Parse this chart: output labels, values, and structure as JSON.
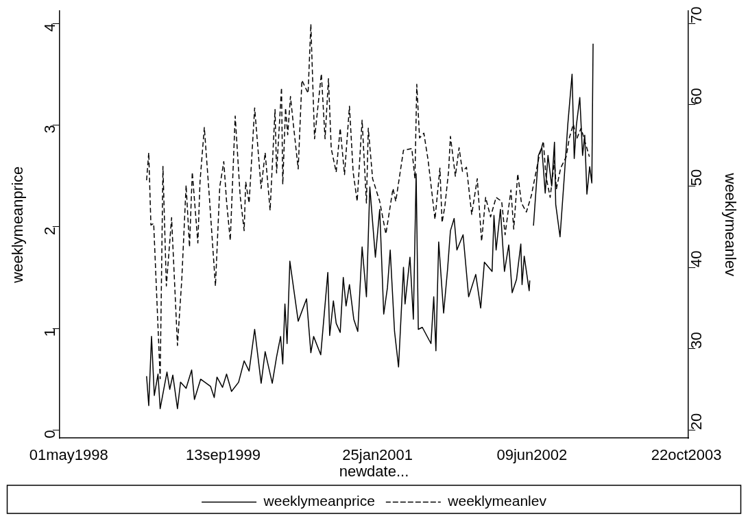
{
  "chart_data": {
    "type": "line",
    "xlabel": "newdate...",
    "ylabel": "weeklymeanprice",
    "y2label": "weeklymeanlev",
    "xlim": [
      "1998-04-01",
      "2003-10-29"
    ],
    "xticks": [
      {
        "value": "1998-05-01",
        "label": "01may1998"
      },
      {
        "value": "1999-09-13",
        "label": "13sep1999"
      },
      {
        "value": "2001-01-25",
        "label": "25jan2001"
      },
      {
        "value": "2002-06-09",
        "label": "09jun2002"
      },
      {
        "value": "2003-10-22",
        "label": "22oct2003"
      }
    ],
    "ylim": [
      -0.08,
      4.12
    ],
    "yticks": [
      0,
      1,
      2,
      3,
      4
    ],
    "y2lim": [
      19,
      71.5
    ],
    "y2ticks": [
      20,
      30,
      40,
      50,
      60,
      70
    ],
    "grid": false,
    "legend": "bottom",
    "marker": "none",
    "series": [
      {
        "name": "weeklymeanprice",
        "color": "#000000",
        "line_style": "solid",
        "x": [
          "1999-01-08",
          "1999-01-15",
          "1999-01-24",
          "1999-02-02",
          "1999-02-14",
          "1999-02-21",
          "1999-03-15",
          "1999-03-24",
          "1999-04-03",
          "1999-04-18",
          "1999-04-28",
          "1999-05-16",
          "1999-06-03",
          "1999-06-12",
          "1999-07-02",
          "1999-08-03",
          "1999-08-15",
          "1999-08-24",
          "1999-09-11",
          "1999-09-24",
          "1999-10-10",
          "1999-11-02",
          "1999-11-20",
          "1999-12-06",
          "1999-12-24",
          "2000-01-14",
          "2000-01-27",
          "2000-02-19",
          "2000-03-04",
          "2000-03-17",
          "2000-03-24",
          "2000-03-31",
          "2000-04-07",
          "2000-04-16",
          "2000-05-13",
          "2000-06-09",
          "2000-06-23",
          "2000-07-02",
          "2000-07-25",
          "2000-08-17",
          "2000-08-23",
          "2000-09-04",
          "2000-09-13",
          "2000-09-26",
          "2000-10-06",
          "2000-10-15",
          "2000-10-26",
          "2000-11-09",
          "2000-11-22",
          "2000-12-06",
          "2000-12-20",
          "2000-12-31",
          "2001-01-18",
          "2001-02-01",
          "2001-02-14",
          "2001-02-26",
          "2001-03-07",
          "2001-03-21",
          "2001-04-03",
          "2001-04-19",
          "2001-04-24",
          "2001-05-10",
          "2001-05-21",
          "2001-05-30",
          "2001-06-06",
          "2001-06-19",
          "2001-07-17",
          "2001-07-26",
          "2001-08-02",
          "2001-08-11",
          "2001-08-27",
          "2001-09-09",
          "2001-09-18",
          "2001-09-30",
          "2001-10-09",
          "2001-10-29",
          "2001-11-16",
          "2001-12-09",
          "2001-12-25",
          "2002-01-06",
          "2002-01-31",
          "2002-02-06",
          "2002-02-13",
          "2002-02-27",
          "2002-03-12",
          "2002-03-26",
          "2002-04-06",
          "2002-04-20",
          "2002-05-04",
          "2002-05-08",
          "2002-05-15",
          "2002-05-31",
          "2002-06-02",
          "2002-06-09",
          "2002-06-14",
          "2002-06-30",
          "2002-07-11",
          "2002-07-22",
          "2002-07-31",
          "2002-08-12",
          "2002-08-21",
          "2002-08-25",
          "2002-09-08",
          "2002-09-22",
          "2002-10-03",
          "2002-10-17",
          "2002-10-24",
          "2002-10-31",
          "2002-11-11",
          "2002-11-20",
          "2002-11-27",
          "2002-12-04",
          "2002-12-13",
          "2002-12-20",
          "2002-12-24"
        ],
        "values": [
          0.53,
          0.24,
          0.92,
          0.34,
          0.55,
          0.21,
          0.57,
          0.4,
          0.54,
          0.21,
          0.47,
          0.41,
          0.59,
          0.3,
          0.5,
          0.43,
          0.32,
          0.52,
          0.42,
          0.55,
          0.38,
          0.47,
          0.68,
          0.58,
          0.99,
          0.46,
          0.77,
          0.46,
          0.72,
          0.92,
          0.65,
          1.24,
          0.85,
          1.66,
          1.07,
          1.29,
          0.76,
          0.92,
          0.74,
          1.55,
          0.93,
          1.27,
          1.05,
          0.96,
          1.5,
          1.22,
          1.43,
          1.09,
          0.97,
          1.8,
          1.31,
          2.39,
          1.7,
          2.17,
          1.14,
          1.4,
          1.77,
          0.97,
          0.62,
          1.6,
          1.24,
          1.7,
          1.09,
          2.52,
          0.99,
          1.01,
          0.85,
          1.31,
          0.78,
          1.85,
          1.15,
          1.59,
          1.96,
          2.08,
          1.77,
          1.92,
          1.31,
          1.53,
          1.2,
          1.65,
          1.56,
          2.11,
          1.77,
          2.17,
          1.56,
          1.82,
          1.35,
          1.48,
          1.83,
          1.43,
          1.71,
          1.37,
          1.47,
          null,
          2.01,
          2.7,
          2.78,
          2.33,
          2.7,
          2.4,
          2.83,
          2.22,
          1.9,
          2.5,
          3.0,
          3.5,
          2.67,
          3.0,
          3.27,
          2.7,
          2.9,
          2.32,
          2.59,
          2.43,
          3.8
        ]
      },
      {
        "name": "weeklymeanlev",
        "color": "#000000",
        "line_style": "dashed",
        "axis": "y2",
        "x": [
          "1999-01-08",
          "1999-01-15",
          "1999-01-22",
          "1999-01-31",
          "1999-02-21",
          "1999-03-02",
          "1999-03-13",
          "1999-03-30",
          "1999-04-18",
          "1999-05-02",
          "1999-05-16",
          "1999-05-27",
          "1999-06-05",
          "1999-06-23",
          "1999-06-30",
          "1999-07-14",
          "1999-07-30",
          "1999-08-19",
          "1999-09-02",
          "1999-09-15",
          "1999-09-24",
          "1999-10-06",
          "1999-10-22",
          "1999-11-07",
          "1999-11-20",
          "1999-11-25",
          "1999-12-06",
          "1999-12-24",
          "2000-01-14",
          "2000-01-27",
          "2000-02-12",
          "2000-02-28",
          "2000-03-04",
          "2000-03-20",
          "2000-03-24",
          "2000-04-02",
          "2000-04-09",
          "2000-04-18",
          "2000-04-27",
          "2000-05-13",
          "2000-05-25",
          "2000-06-14",
          "2000-06-23",
          "2000-07-05",
          "2000-07-27",
          "2000-08-08",
          "2000-08-19",
          "2000-08-28",
          "2000-09-13",
          "2000-09-26",
          "2000-10-10",
          "2000-10-26",
          "2000-11-07",
          "2000-11-20",
          "2000-12-06",
          "2000-12-20",
          "2000-12-26",
          "2001-01-09",
          "2001-02-01",
          "2001-02-21",
          "2001-03-16",
          "2001-03-25",
          "2001-04-19",
          "2001-05-16",
          "2001-05-26",
          "2001-06-01",
          "2001-06-10",
          "2001-06-24",
          "2001-07-08",
          "2001-07-30",
          "2001-08-15",
          "2001-08-22",
          "2001-08-31",
          "2001-09-12",
          "2001-09-18",
          "2001-10-04",
          "2001-10-16",
          "2001-10-27",
          "2001-11-09",
          "2001-11-26",
          "2001-12-14",
          "2001-12-28",
          "2002-01-10",
          "2002-01-26",
          "2002-02-13",
          "2002-03-03",
          "2002-03-14",
          "2002-04-02",
          "2002-04-11",
          "2002-04-24",
          "2002-05-06",
          "2002-05-22",
          "2002-06-07",
          "2002-06-20",
          "2002-07-02",
          "2002-07-16",
          "2002-07-24",
          "2002-08-07",
          "2002-08-21",
          "2002-08-27",
          "2002-09-10",
          "2002-09-28",
          "2002-10-08",
          "2002-10-21",
          "2002-11-01",
          "2002-11-15",
          "2002-11-29",
          "2002-12-12"
        ],
        "values": [
          50.7,
          54.1,
          45.2,
          45.4,
          26.3,
          52.4,
          37.7,
          46.1,
          30.4,
          38.5,
          50.1,
          42.5,
          51.7,
          43,
          50.5,
          57.2,
          48.8,
          37.7,
          49.9,
          53,
          48.1,
          43.3,
          58.6,
          48.8,
          44.5,
          50.5,
          47.9,
          59.6,
          49.7,
          54.1,
          47,
          59.4,
          51.6,
          62.1,
          50.2,
          59.6,
          56.3,
          61,
          57.7,
          52.1,
          63,
          61.4,
          69.9,
          55.8,
          63.8,
          55.8,
          63.2,
          54.6,
          51.7,
          57.1,
          51.4,
          59.8,
          51.7,
          48.1,
          58.1,
          47.9,
          57.1,
          50.9,
          48.1,
          44.1,
          49.7,
          48.1,
          54.4,
          54.6,
          50.9,
          62.5,
          55.9,
          56.5,
          53.1,
          45.9,
          52.2,
          45.5,
          47.5,
          51.8,
          56.1,
          51.2,
          54.7,
          51.8,
          52.3,
          46.5,
          50.9,
          43.2,
          48.6,
          46.2,
          48.6,
          48.1,
          44,
          49.5,
          44.7,
          51.5,
          47.9,
          46.8,
          48.8,
          51.3,
          53.6,
          55.5,
          51.3,
          48.6,
          53.1,
          49.6,
          52.2,
          53.6,
          55.9,
          57.6,
          55.8,
          57.1,
          55.3,
          53.6
        ]
      }
    ]
  }
}
